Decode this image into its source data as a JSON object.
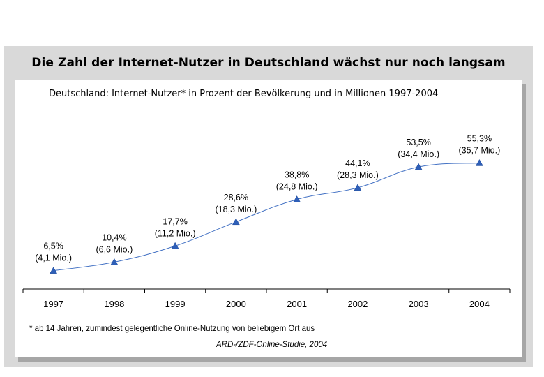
{
  "title": "Die Zahl der Internet-Nutzer in Deutschland wächst nur noch langsam",
  "subtitle": "Deutschland: Internet-Nutzer* in Prozent der Bevölkerung und in Millionen 1997-2004",
  "footnote": "* ab 14 Jahren, zumindest gelegentliche Online-Nutzung von beliebigem Ort aus",
  "source": "ARD-/ZDF-Online-Studie, 2004",
  "chart_data": {
    "type": "line",
    "title": "Deutschland: Internet-Nutzer* in Prozent der Bevölkerung und in Millionen 1997-2004",
    "categories": [
      "1997",
      "1998",
      "1999",
      "2000",
      "2001",
      "2002",
      "2003",
      "2004"
    ],
    "series": [
      {
        "values": [
          6.5,
          10.4,
          17.7,
          28.6,
          38.8,
          44.1,
          53.5,
          55.3
        ],
        "millions": [
          4.1,
          6.6,
          11.2,
          18.3,
          24.8,
          28.3,
          34.4,
          35.7
        ],
        "labels_pct": [
          "6,5%",
          "10,4%",
          "17,7%",
          "28,6%",
          "38,8%",
          "44,1%",
          "53,5%",
          "55,3%"
        ],
        "labels_mio": [
          "(4,1 Mio.)",
          "(6,6 Mio.)",
          "(11,2 Mio.)",
          "(18,3 Mio.)",
          "(24,8 Mio.)",
          "(28,3 Mio.)",
          "(34,4 Mio.)",
          "(35,7 Mio.)"
        ]
      }
    ],
    "xlabel": "",
    "ylabel": "",
    "grid": false,
    "line_color": "#4472c4",
    "marker": "triangle"
  }
}
